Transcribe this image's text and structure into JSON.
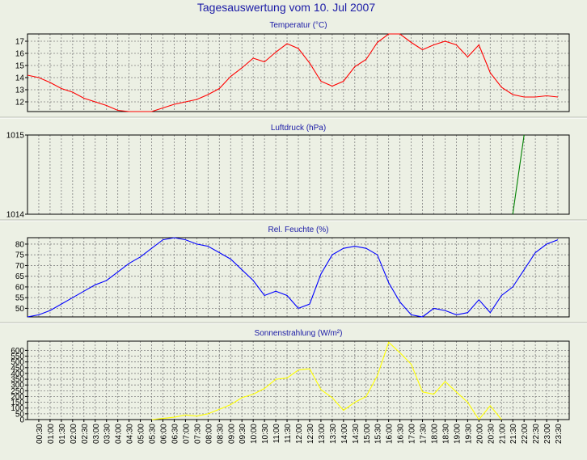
{
  "page": {
    "title": "Tagesauswertung vom 10. Jul 2007",
    "colors": {
      "background": "#ecf0e4",
      "title": "#1a1aa6",
      "plot_bg": "#ecf0e4",
      "grid": "#808080",
      "frame": "#000000"
    }
  },
  "chart_data": [
    {
      "type": "line",
      "title": "Temperatur (°C)",
      "ylim": [
        11.2,
        17.6
      ],
      "yticks": [
        "12",
        "13",
        "14",
        "15",
        "16",
        "17"
      ],
      "grid": true,
      "x": [
        "00:00",
        "00:30",
        "01:00",
        "01:30",
        "02:00",
        "02:30",
        "03:00",
        "03:30",
        "04:00",
        "04:30",
        "05:00",
        "05:30",
        "06:00",
        "06:30",
        "07:00",
        "07:30",
        "08:00",
        "08:30",
        "09:00",
        "09:30",
        "10:00",
        "10:30",
        "11:00",
        "11:30",
        "12:00",
        "12:30",
        "13:00",
        "13:30",
        "14:00",
        "14:30",
        "15:00",
        "15:30",
        "16:00",
        "16:30",
        "17:00",
        "17:30",
        "18:00",
        "18:30",
        "19:00",
        "19:30",
        "20:00",
        "20:30",
        "21:00",
        "21:30",
        "22:00",
        "22:30",
        "23:00",
        "23:30"
      ],
      "series": [
        {
          "color": "#ff0000",
          "values": [
            14.2,
            14.0,
            13.6,
            13.1,
            12.8,
            12.3,
            12.0,
            11.7,
            11.3,
            11.2,
            11.2,
            11.2,
            11.5,
            11.8,
            12.0,
            12.2,
            12.6,
            13.1,
            14.1,
            14.8,
            15.6,
            15.3,
            16.1,
            16.8,
            16.4,
            15.2,
            13.7,
            13.3,
            13.7,
            14.9,
            15.5,
            16.9,
            17.6,
            17.6,
            16.9,
            16.3,
            16.7,
            17.0,
            16.7,
            15.7,
            16.7,
            14.4,
            13.2,
            12.6,
            12.4,
            12.4,
            12.5,
            12.4
          ]
        }
      ]
    },
    {
      "type": "line",
      "title": "Luftdruck (hPa)",
      "ylim": [
        1014,
        1015
      ],
      "yticks": [
        "1014",
        "1015"
      ],
      "grid": true,
      "x": [
        "21:30",
        "22:00"
      ],
      "series": [
        {
          "color": "#008000",
          "values": [
            1014,
            1015
          ]
        }
      ]
    },
    {
      "type": "line",
      "title": "Rel. Feuchte (%)",
      "ylim": [
        46,
        83
      ],
      "yticks": [
        "50",
        "55",
        "60",
        "65",
        "70",
        "75",
        "80"
      ],
      "grid": true,
      "x": [
        "00:00",
        "00:30",
        "01:00",
        "01:30",
        "02:00",
        "02:30",
        "03:00",
        "03:30",
        "04:00",
        "04:30",
        "05:00",
        "05:30",
        "06:00",
        "06:30",
        "07:00",
        "07:30",
        "08:00",
        "08:30",
        "09:00",
        "09:30",
        "10:00",
        "10:30",
        "11:00",
        "11:30",
        "12:00",
        "12:30",
        "13:00",
        "13:30",
        "14:00",
        "14:30",
        "15:00",
        "15:30",
        "16:00",
        "16:30",
        "17:00",
        "17:30",
        "18:00",
        "18:30",
        "19:00",
        "19:30",
        "20:00",
        "20:30",
        "21:00",
        "21:30",
        "22:00",
        "22:30",
        "23:00",
        "23:30"
      ],
      "series": [
        {
          "color": "#0000ff",
          "values": [
            46,
            47,
            49,
            52,
            55,
            58,
            61,
            63,
            67,
            71,
            74,
            78,
            82,
            83,
            82,
            80,
            79,
            76,
            73,
            68,
            63,
            56,
            58,
            56,
            50,
            52,
            66,
            75,
            78,
            79,
            78,
            75,
            62,
            53,
            47,
            46,
            50,
            49,
            47,
            48,
            54,
            48,
            56,
            60,
            68,
            76,
            80,
            82
          ]
        }
      ]
    },
    {
      "type": "line",
      "title": "Sonnenstrahlung (W/m²)",
      "ylim": [
        0,
        680
      ],
      "yticks": [
        "0",
        "50",
        "100",
        "150",
        "200",
        "250",
        "300",
        "350",
        "400",
        "450",
        "500",
        "550",
        "600"
      ],
      "xticks": [
        "00:30",
        "01:00",
        "01:30",
        "02:00",
        "02:30",
        "03:00",
        "03:30",
        "04:00",
        "04:30",
        "05:00",
        "05:30",
        "06:00",
        "06:30",
        "07:00",
        "07:30",
        "08:00",
        "08:30",
        "09:00",
        "09:30",
        "10:00",
        "10:30",
        "11:00",
        "11:30",
        "12:00",
        "12:30",
        "13:00",
        "13:30",
        "14:00",
        "14:30",
        "15:00",
        "15:30",
        "16:00",
        "16:30",
        "17:00",
        "17:30",
        "18:00",
        "18:30",
        "19:00",
        "19:30",
        "20:00",
        "20:30",
        "21:00",
        "21:30",
        "22:00",
        "22:30",
        "23:00",
        "23:30"
      ],
      "grid": true,
      "x": [
        "05:30",
        "06:00",
        "06:30",
        "07:00",
        "07:30",
        "08:00",
        "08:30",
        "09:00",
        "09:30",
        "10:00",
        "10:30",
        "11:00",
        "11:30",
        "12:00",
        "12:30",
        "13:00",
        "13:30",
        "14:00",
        "14:30",
        "15:00",
        "15:30",
        "16:00",
        "16:30",
        "17:00",
        "17:30",
        "18:00",
        "18:30",
        "19:00",
        "19:30",
        "20:00",
        "20:30",
        "21:00"
      ],
      "series": [
        {
          "color": "#ffff00",
          "values": [
            0,
            10,
            20,
            40,
            30,
            50,
            90,
            130,
            190,
            220,
            270,
            350,
            360,
            430,
            440,
            260,
            190,
            80,
            150,
            200,
            380,
            670,
            580,
            480,
            240,
            220,
            330,
            240,
            150,
            0,
            120,
            0
          ]
        }
      ]
    }
  ]
}
